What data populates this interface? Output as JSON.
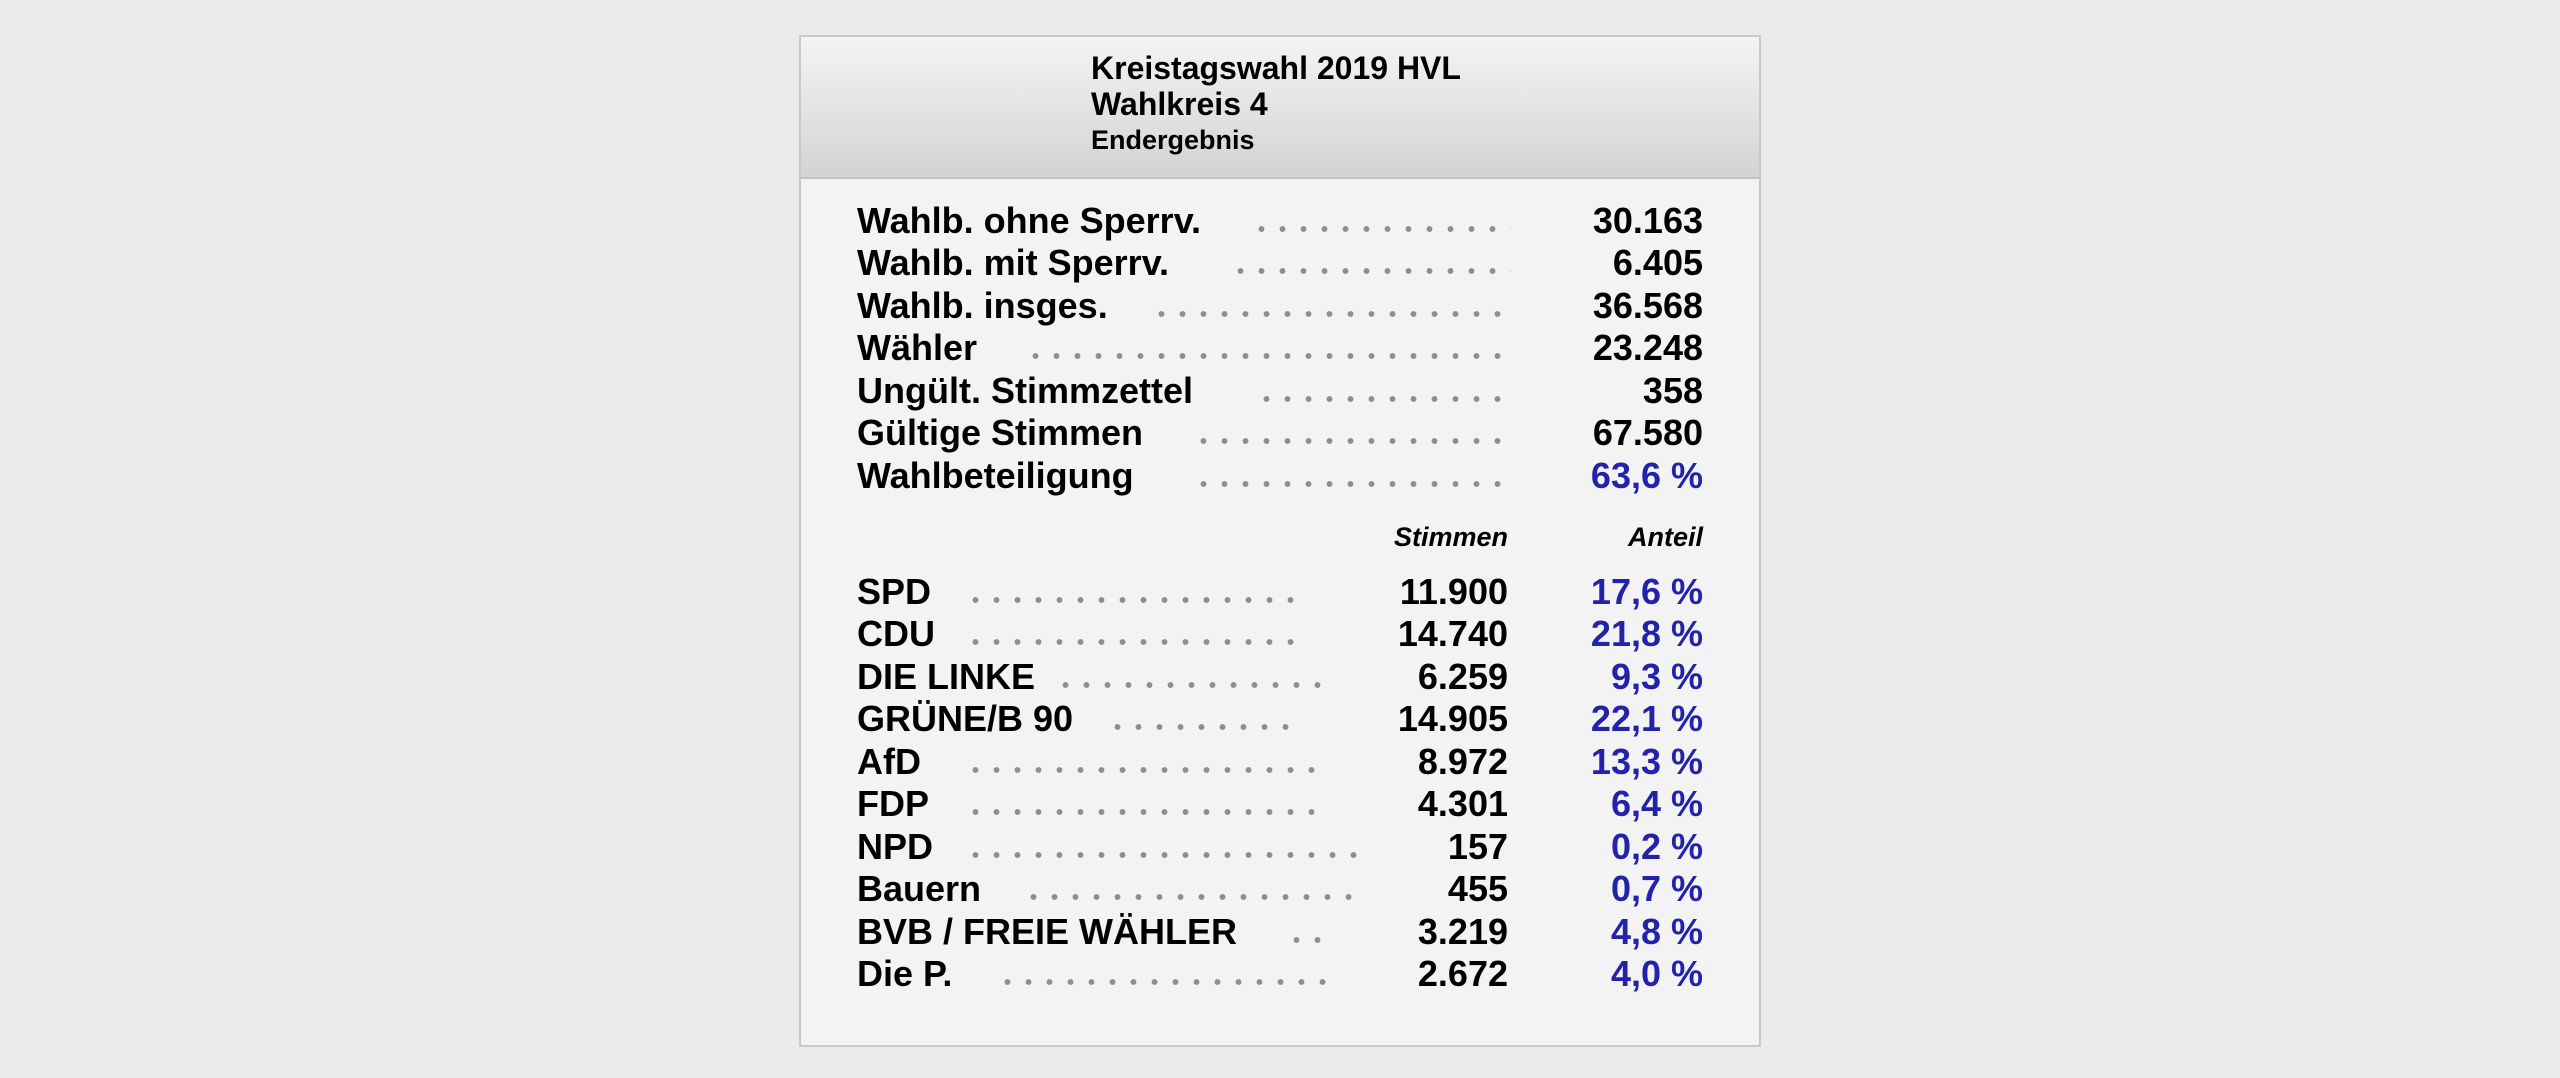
{
  "header": {
    "line1": "Kreistagswahl 2019 HVL",
    "line2": "Wahlkreis 4",
    "line3": "Endergebnis"
  },
  "summary": [
    {
      "label": "Wahlb. ohne Sperrv.",
      "value": "30.163"
    },
    {
      "label": "Wahlb. mit Sperrv.",
      "value": "6.405"
    },
    {
      "label": "Wahlb. insges.",
      "value": "36.568"
    },
    {
      "label": "Wähler",
      "value": "23.248"
    },
    {
      "label": "Ungült. Stimmzettel",
      "value": "358"
    },
    {
      "label": "Gültige Stimmen",
      "value": "67.580"
    },
    {
      "label": "Wahlbeteiligung",
      "value": "63,6 %"
    }
  ],
  "columns": {
    "votes": "Stimmen",
    "share": "Anteil"
  },
  "parties": [
    {
      "name": "SPD",
      "votes": "11.900",
      "share": "17,6 %"
    },
    {
      "name": "CDU",
      "votes": "14.740",
      "share": "21,8 %"
    },
    {
      "name": "DIE LINKE",
      "votes": "6.259",
      "share": "9,3 %"
    },
    {
      "name": "GRÜNE/B 90",
      "votes": "14.905",
      "share": "22,1 %"
    },
    {
      "name": "AfD",
      "votes": "8.972",
      "share": "13,3 %"
    },
    {
      "name": "FDP",
      "votes": "4.301",
      "share": "6,4 %"
    },
    {
      "name": "NPD",
      "votes": "157",
      "share": "0,2 %"
    },
    {
      "name": "Bauern",
      "votes": "455",
      "share": "0,7 %"
    },
    {
      "name": "BVB / FREIE WÄHLER",
      "votes": "3.219",
      "share": "4,8 %"
    },
    {
      "name": "Die P.",
      "votes": "2.672",
      "share": "4,0 %"
    }
  ],
  "colors": {
    "percent": "#2222aa",
    "header_gradient_top": "#f4f4f4",
    "header_gradient_bottom": "#d3d3d3",
    "page_background": "#ebebeb",
    "panel_background": "#f3f3f3"
  }
}
